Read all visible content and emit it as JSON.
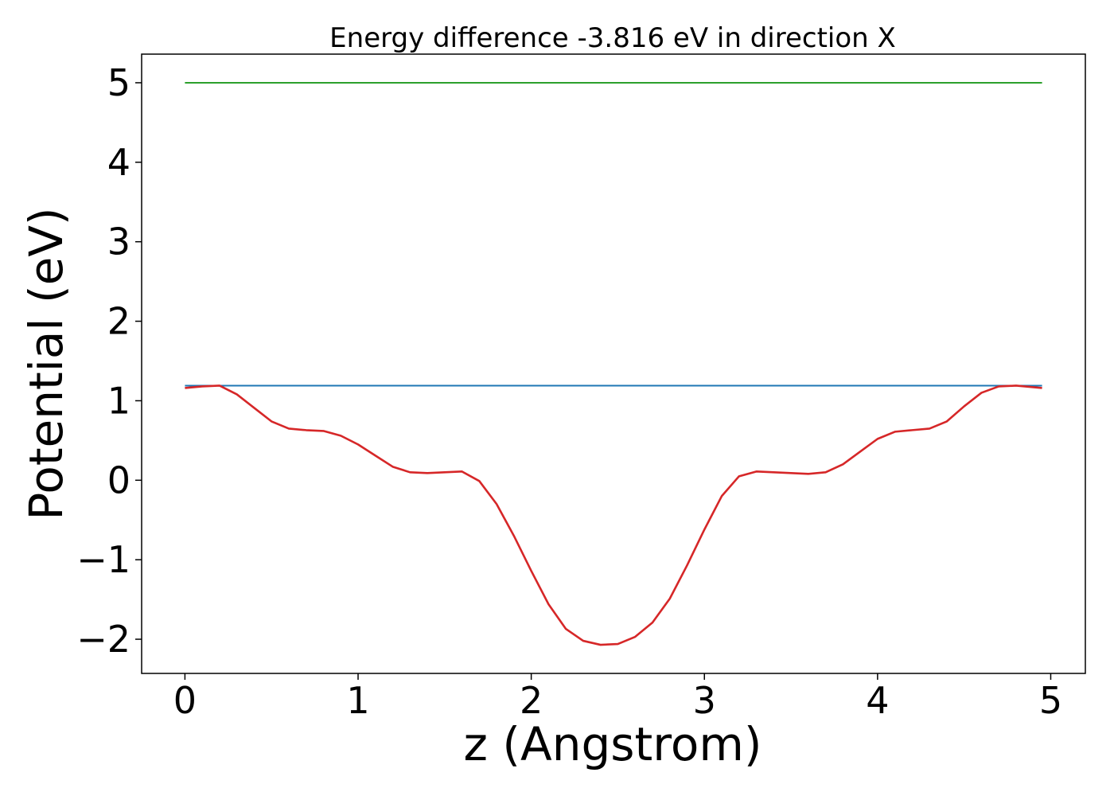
{
  "chart_data": {
    "type": "line",
    "title": "Energy difference -3.816 eV in direction X",
    "xlabel": "z (Angstrom)",
    "ylabel": "Potential (eV)",
    "xlim": [
      -0.25,
      5.2
    ],
    "ylim": [
      -2.43,
      5.36
    ],
    "xticks": [
      0,
      1,
      2,
      3,
      4,
      5
    ],
    "xtick_labels": [
      "0",
      "1",
      "2",
      "3",
      "4",
      "5"
    ],
    "yticks": [
      -2,
      -1,
      0,
      1,
      2,
      3,
      4,
      5
    ],
    "ytick_labels": [
      "−2",
      "−1",
      "0",
      "1",
      "2",
      "3",
      "4",
      "5"
    ],
    "grid": false,
    "series": [
      {
        "color": "#2ca02c",
        "x": [
          0,
          4.95
        ],
        "y": [
          5.0,
          5.0
        ]
      },
      {
        "color": "#1f77b4",
        "x": [
          0,
          4.95
        ],
        "y": [
          1.19,
          1.19
        ]
      },
      {
        "color": "#d62728",
        "x": [
          0,
          0.1,
          0.2,
          0.3,
          0.4,
          0.5,
          0.6,
          0.7,
          0.8,
          0.9,
          1.0,
          1.1,
          1.2,
          1.3,
          1.4,
          1.5,
          1.6,
          1.7,
          1.8,
          1.9,
          2.0,
          2.1,
          2.2,
          2.3,
          2.4,
          2.5,
          2.6,
          2.7,
          2.8,
          2.9,
          3.0,
          3.1,
          3.2,
          3.3,
          3.4,
          3.5,
          3.6,
          3.7,
          3.8,
          3.9,
          4.0,
          4.1,
          4.2,
          4.3,
          4.4,
          4.5,
          4.6,
          4.7,
          4.8,
          4.9,
          4.95
        ],
        "y": [
          1.16,
          1.18,
          1.19,
          1.08,
          0.91,
          0.74,
          0.65,
          0.63,
          0.62,
          0.56,
          0.45,
          0.31,
          0.17,
          0.1,
          0.09,
          0.1,
          0.11,
          -0.01,
          -0.3,
          -0.7,
          -1.14,
          -1.56,
          -1.87,
          -2.02,
          -2.07,
          -2.06,
          -1.97,
          -1.79,
          -1.49,
          -1.07,
          -0.62,
          -0.2,
          0.05,
          0.11,
          0.1,
          0.09,
          0.08,
          0.1,
          0.2,
          0.36,
          0.52,
          0.61,
          0.63,
          0.65,
          0.74,
          0.93,
          1.1,
          1.18,
          1.19,
          1.17,
          1.16
        ]
      }
    ]
  }
}
